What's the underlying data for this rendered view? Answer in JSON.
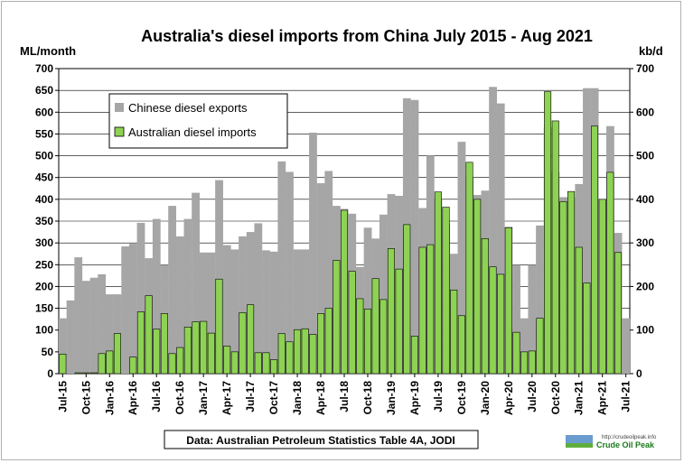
{
  "chart_data": {
    "type": "bar",
    "title": "Australia's diesel imports from China July 2015 - Aug 2021",
    "ylabel_left": "ML/month",
    "ylabel_right": "kb/d",
    "ylim_left": [
      0,
      700
    ],
    "ylim_right": [
      0,
      700
    ],
    "yticks": [
      0,
      50,
      100,
      150,
      200,
      250,
      300,
      350,
      400,
      450,
      500,
      550,
      600,
      650,
      700
    ],
    "yticks_right": [
      0,
      100,
      200,
      300,
      400,
      500,
      600,
      700
    ],
    "grid": true,
    "legend_position": "top-left",
    "xtick_labels": [
      "Jul-15",
      "Oct-15",
      "Jan-16",
      "Apr-16",
      "Jul-16",
      "Oct-16",
      "Jan-17",
      "Apr-17",
      "Jul-17",
      "Oct-17",
      "Jan-18",
      "Apr-18",
      "Jul-18",
      "Oct-18",
      "Jan-19",
      "Apr-19",
      "Jul-19",
      "Oct-19",
      "Jan-20",
      "Apr-20",
      "Jul-20",
      "Oct-20",
      "Jan-21",
      "Apr-21",
      "Jul-21"
    ],
    "xtick_every": 3,
    "series": [
      {
        "name": "Chinese diesel exports",
        "axis": "right",
        "color": "#a6a6a6",
        "values": [
          127,
          168,
          267,
          213,
          220,
          228,
          182,
          182,
          292,
          298,
          346,
          265,
          355,
          250,
          385,
          315,
          355,
          415,
          278,
          278,
          444,
          295,
          285,
          315,
          325,
          345,
          283,
          280,
          487,
          463,
          285,
          285,
          553,
          437,
          465,
          385,
          378,
          367,
          245,
          335,
          310,
          365,
          412,
          408,
          632,
          628,
          380,
          500,
          400,
          345,
          275,
          532,
          450,
          410,
          420,
          658,
          620,
          337,
          250,
          127,
          250,
          340,
          565,
          462,
          405,
          405,
          435,
          655,
          655,
          400,
          568,
          323,
          127
        ]
      },
      {
        "name": "Australian diesel imports",
        "axis": "left",
        "color": "#8ed253",
        "values": [
          45,
          null,
          2,
          2,
          2,
          46,
          52,
          92,
          null,
          38,
          142,
          179,
          102,
          138,
          46,
          60,
          107,
          119,
          120,
          93,
          217,
          63,
          50,
          140,
          158,
          48,
          48,
          32,
          92,
          73,
          101,
          103,
          90,
          138,
          150,
          260,
          375,
          235,
          172,
          148,
          218,
          170,
          287,
          240,
          342,
          86,
          290,
          296,
          417,
          382,
          192,
          133,
          485,
          400,
          310,
          245,
          228,
          335,
          95,
          50,
          52,
          127,
          647,
          580,
          395,
          418,
          290,
          208,
          568,
          400,
          462,
          278,
          null
        ]
      }
    ]
  },
  "source_note": "Data: Australian Petroleum Statistics Table 4A, JODI",
  "logo": {
    "name": "Crude Oil Peak",
    "url": "http://crudeoilpeak.info"
  }
}
